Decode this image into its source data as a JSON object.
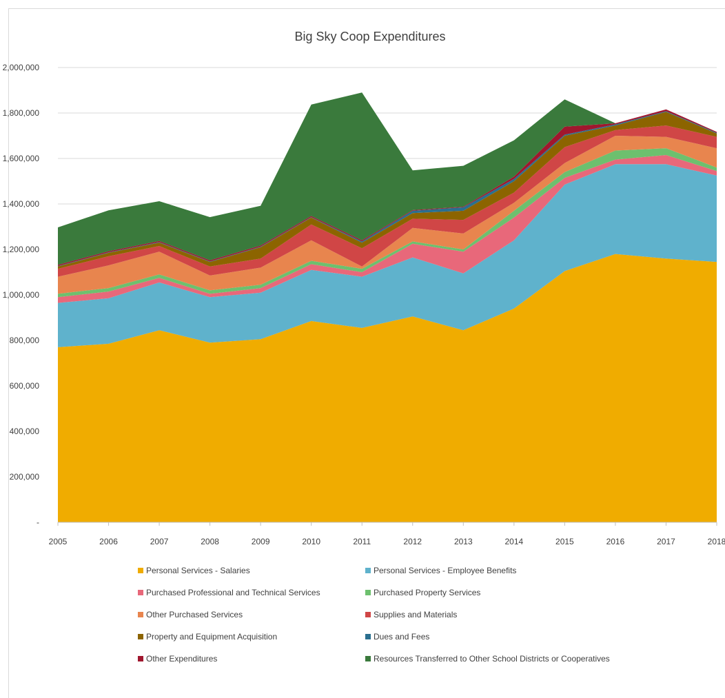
{
  "chart_data": {
    "type": "area",
    "stacked": true,
    "title": "Big Sky Coop Expenditures",
    "xlabel": "",
    "ylabel": "",
    "ylim": [
      0,
      2000000
    ],
    "y_ticks": [
      0,
      200000,
      400000,
      600000,
      800000,
      1000000,
      1200000,
      1400000,
      1600000,
      1800000,
      2000000
    ],
    "y_tick_labels": [
      "-",
      "200,000",
      "400,000",
      "600,000",
      "800,000",
      "1,000,000",
      "1,200,000",
      "1,400,000",
      "1,600,000",
      "1,800,000",
      "2,000,000"
    ],
    "grid": true,
    "legend_position": "bottom",
    "categories": [
      "2005",
      "2006",
      "2007",
      "2008",
      "2009",
      "2010",
      "2011",
      "2012",
      "2013",
      "2014",
      "2015",
      "2016",
      "2017",
      "2018"
    ],
    "series": [
      {
        "name": "Personal Services - Salaries",
        "color": "#F0AC00",
        "values": [
          770000,
          785000,
          845000,
          790000,
          805000,
          885000,
          855000,
          905000,
          845000,
          940000,
          1105000,
          1180000,
          1160000,
          1145000
        ]
      },
      {
        "name": "Personal Services - Employee Benefits",
        "color": "#5FB2CC",
        "values": [
          195000,
          200000,
          210000,
          200000,
          205000,
          225000,
          225000,
          260000,
          250000,
          300000,
          380000,
          395000,
          415000,
          380000
        ]
      },
      {
        "name": "Purchased Professional and Technical Services",
        "color": "#E8687A",
        "values": [
          25000,
          30000,
          20000,
          15000,
          20000,
          25000,
          20000,
          60000,
          95000,
          100000,
          30000,
          20000,
          40000,
          20000
        ]
      },
      {
        "name": "Purchased Property Services",
        "color": "#6DC06E",
        "values": [
          15000,
          15000,
          15000,
          15000,
          15000,
          15000,
          15000,
          10000,
          10000,
          30000,
          25000,
          40000,
          30000,
          15000
        ]
      },
      {
        "name": "Other Purchased Services",
        "color": "#E8854E",
        "values": [
          75000,
          100000,
          100000,
          65000,
          75000,
          90000,
          10000,
          60000,
          70000,
          35000,
          40000,
          65000,
          50000,
          85000
        ]
      },
      {
        "name": "Supplies and Materials",
        "color": "#D04646",
        "values": [
          35000,
          40000,
          25000,
          40000,
          40000,
          70000,
          80000,
          40000,
          60000,
          45000,
          70000,
          25000,
          50000,
          50000
        ]
      },
      {
        "name": "Property and Equipment Acquisition",
        "color": "#8C6400",
        "values": [
          10000,
          15000,
          15000,
          20000,
          50000,
          30000,
          25000,
          25000,
          40000,
          50000,
          50000,
          20000,
          60000,
          15000
        ]
      },
      {
        "name": "Dues and Fees",
        "color": "#2A6F8F",
        "values": [
          2000,
          2000,
          2000,
          2000,
          2000,
          2000,
          5000,
          10000,
          15000,
          10000,
          5000,
          5000,
          3000,
          3000
        ]
      },
      {
        "name": "Other Expenditures",
        "color": "#A0172E",
        "values": [
          5000,
          5000,
          5000,
          5000,
          5000,
          5000,
          5000,
          3000,
          3000,
          10000,
          35000,
          5000,
          8000,
          4000
        ]
      },
      {
        "name": "Resources Transferred to Other School Districts or Cooperatives",
        "color": "#3A7A3C",
        "values": [
          165000,
          180000,
          175000,
          190000,
          175000,
          490000,
          650000,
          175000,
          180000,
          160000,
          120000,
          0,
          0,
          0
        ]
      }
    ]
  }
}
